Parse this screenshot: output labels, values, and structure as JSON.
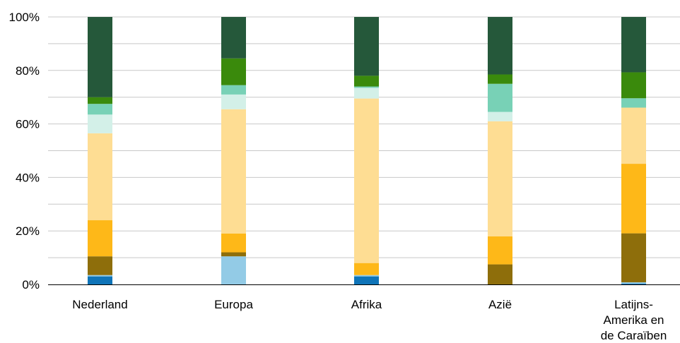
{
  "chart_data": {
    "type": "bar",
    "stacked": true,
    "normalized": true,
    "categories": [
      "Nederland",
      "Europa",
      "Afrika",
      "Azië",
      "Latijns-\nAmerika en\nde Caraïben"
    ],
    "ylim": [
      0,
      100
    ],
    "yticks": [
      "0%",
      "20%",
      "40%",
      "60%",
      "80%",
      "100%"
    ],
    "grid": true,
    "series": [
      {
        "color": "#0f74b8",
        "values": [
          3.0,
          0.0,
          3.0,
          0.0,
          0.3
        ]
      },
      {
        "color": "#93cbe6",
        "values": [
          0.5,
          10.5,
          0.5,
          0.0,
          0.5
        ]
      },
      {
        "color": "#8e6e0b",
        "values": [
          7.0,
          1.5,
          0.0,
          7.5,
          18.3
        ]
      },
      {
        "color": "#feb818",
        "values": [
          13.5,
          7.0,
          4.5,
          10.5,
          26.0
        ]
      },
      {
        "color": "#fedd93",
        "values": [
          32.5,
          46.5,
          61.5,
          43.0,
          21.0
        ]
      },
      {
        "color": "#d3f0e8",
        "values": [
          7.0,
          5.5,
          4.0,
          3.5,
          0.0
        ]
      },
      {
        "color": "#78d1b6",
        "values": [
          4.0,
          3.5,
          0.5,
          10.5,
          3.5
        ]
      },
      {
        "color": "#3a8a0c",
        "values": [
          2.5,
          10.0,
          4.0,
          3.5,
          9.7
        ]
      },
      {
        "color": "#25583a",
        "values": [
          30.0,
          15.5,
          22.0,
          21.5,
          20.7
        ]
      }
    ]
  }
}
